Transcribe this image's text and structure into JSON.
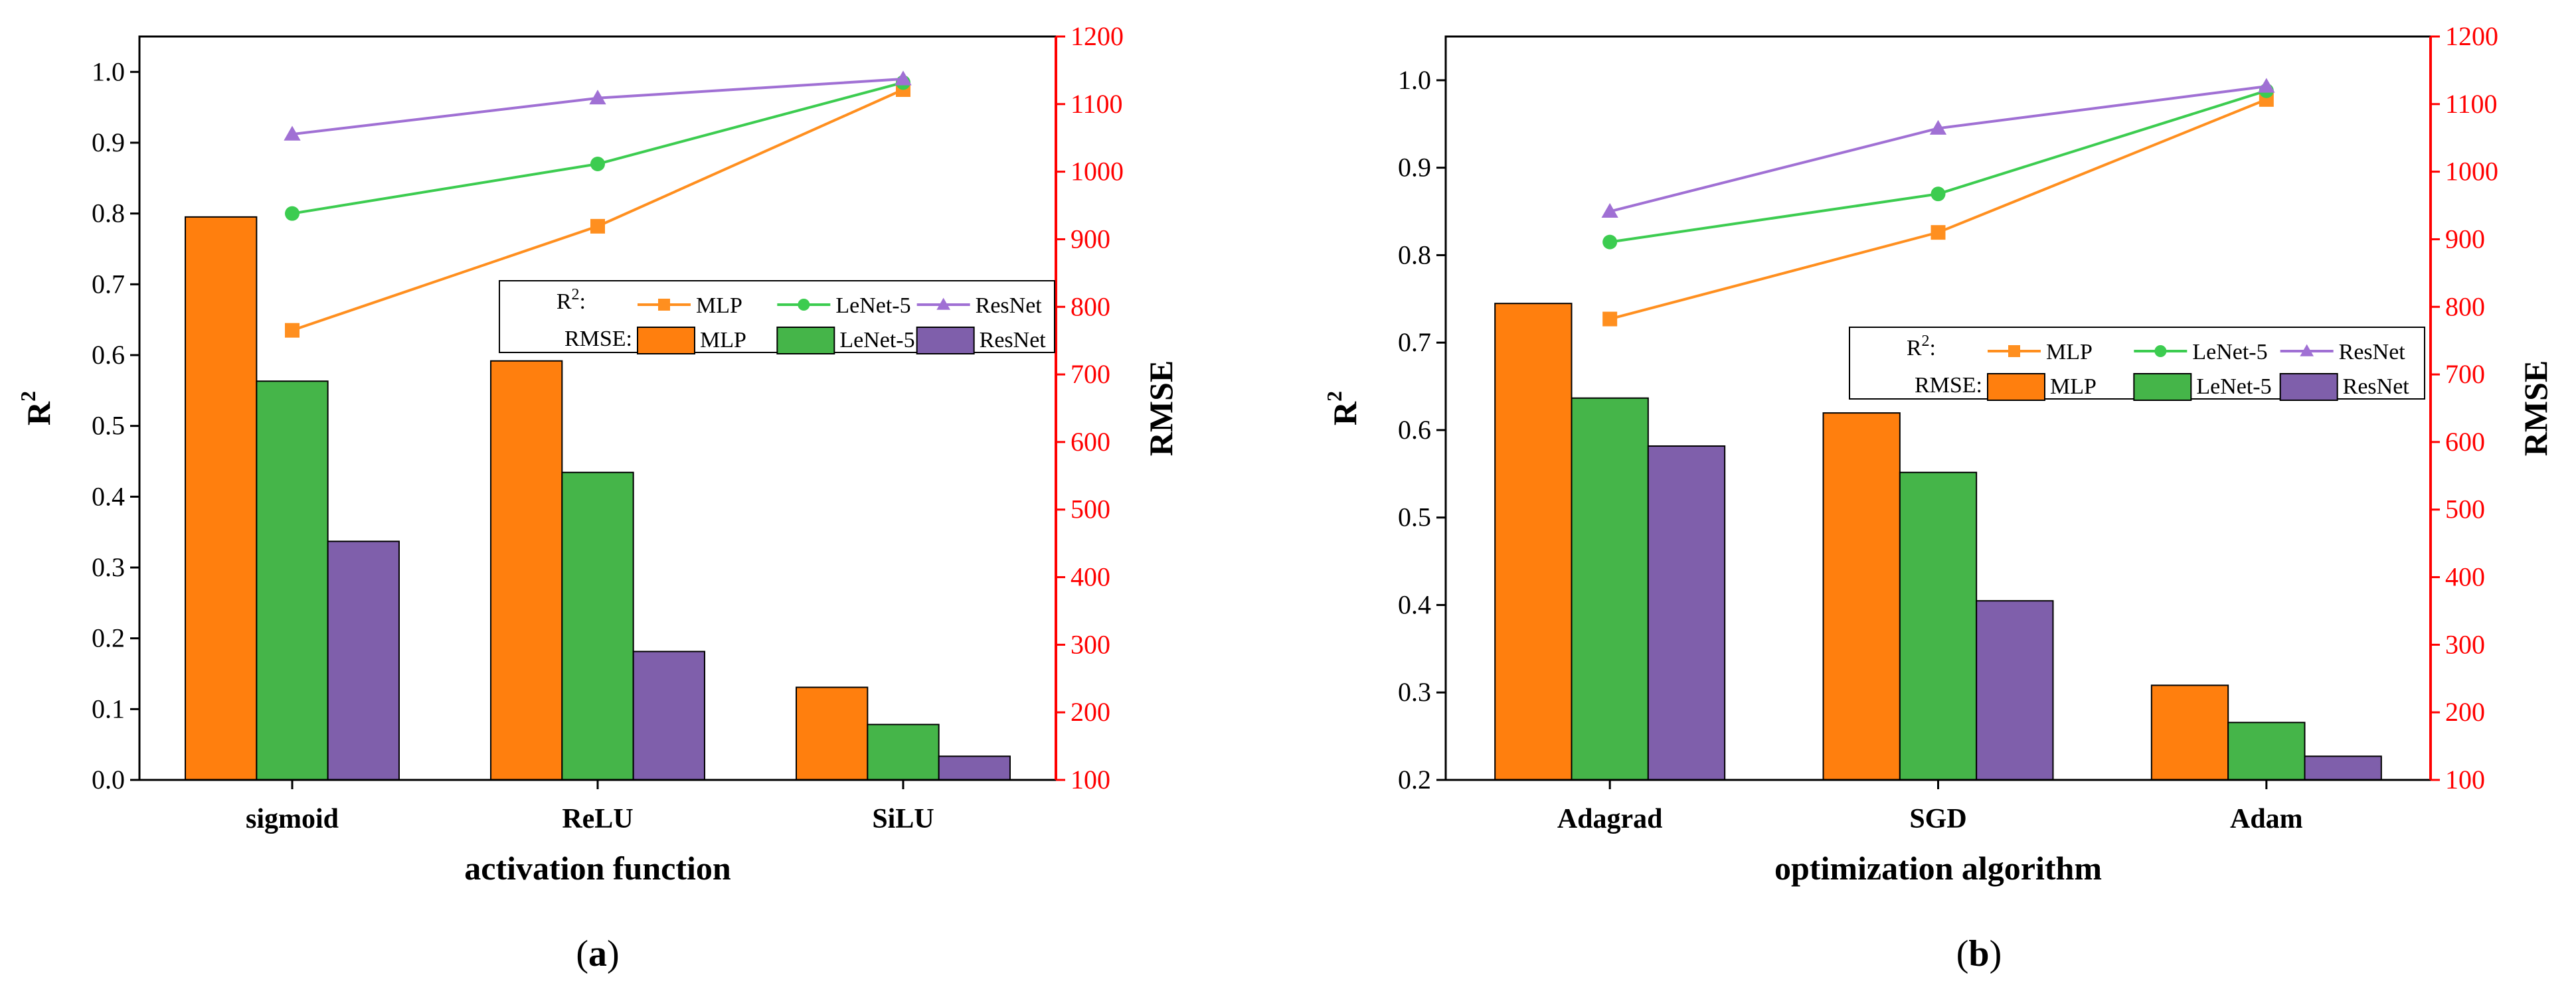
{
  "chart_data": [
    {
      "type": "bar+line",
      "caption": "(a)",
      "caption_letter": "a",
      "categories": [
        "sigmoid",
        "ReLU",
        "SiLU"
      ],
      "xlabel": "activation function",
      "ylabel_left": "R",
      "ylabel_left_sup": "2",
      "ylabel_right": "RMSE",
      "left_ylim": [
        0.0,
        1.05
      ],
      "left_ticks": [
        "0.0",
        "0.1",
        "0.2",
        "0.3",
        "0.4",
        "0.5",
        "0.6",
        "0.7",
        "0.8",
        "0.9",
        "1.0"
      ],
      "right_ylim": [
        100,
        1200
      ],
      "right_ticks": [
        "100",
        "200",
        "300",
        "400",
        "500",
        "600",
        "700",
        "800",
        "900",
        "1000",
        "1100",
        "1200"
      ],
      "bar_series": [
        {
          "name": "MLP",
          "values": [
            933,
            720,
            237
          ]
        },
        {
          "name": "LeNet-5",
          "values": [
            690,
            555,
            182
          ]
        },
        {
          "name": "ResNet",
          "values": [
            453,
            290,
            135
          ]
        }
      ],
      "line_series": [
        {
          "name": "MLP",
          "values": [
            0.635,
            0.782,
            0.975
          ]
        },
        {
          "name": "LeNet-5",
          "values": [
            0.8,
            0.87,
            0.985
          ]
        },
        {
          "name": "ResNet",
          "values": [
            0.912,
            0.963,
            0.99
          ]
        }
      ],
      "legend": {
        "r2_label": "R",
        "r2_sup": "2",
        "r2_suffix": ":",
        "rmse_label": "RMSE:",
        "entries": [
          "MLP",
          "LeNet-5",
          "ResNet"
        ]
      }
    },
    {
      "type": "bar+line",
      "caption": "(b)",
      "caption_letter": "b",
      "categories": [
        "Adagrad",
        "SGD",
        "Adam"
      ],
      "xlabel": "optimization algorithm",
      "ylabel_left": "R",
      "ylabel_left_sup": "2",
      "ylabel_right": "RMSE",
      "left_ylim": [
        0.2,
        1.05
      ],
      "left_ticks": [
        "0.2",
        "0.3",
        "0.4",
        "0.5",
        "0.6",
        "0.7",
        "0.8",
        "0.9",
        "1.0"
      ],
      "right_ylim": [
        100,
        1200
      ],
      "right_ticks": [
        "100",
        "200",
        "300",
        "400",
        "500",
        "600",
        "700",
        "800",
        "900",
        "1000",
        "1100",
        "1200"
      ],
      "bar_series": [
        {
          "name": "MLP",
          "values": [
            805,
            643,
            240
          ]
        },
        {
          "name": "LeNet-5",
          "values": [
            665,
            555,
            185
          ]
        },
        {
          "name": "ResNet",
          "values": [
            594,
            365,
            135
          ]
        }
      ],
      "line_series": [
        {
          "name": "MLP",
          "values": [
            0.727,
            0.826,
            0.978
          ]
        },
        {
          "name": "LeNet-5",
          "values": [
            0.815,
            0.87,
            0.988
          ]
        },
        {
          "name": "ResNet",
          "values": [
            0.85,
            0.945,
            0.993
          ]
        }
      ],
      "legend": {
        "r2_label": "R",
        "r2_sup": "2",
        "r2_suffix": ":",
        "rmse_label": "RMSE:",
        "entries": [
          "MLP",
          "LeNet-5",
          "ResNet"
        ]
      }
    }
  ],
  "colors": {
    "mlp_bar": "#ff7f0e",
    "lenet_bar": "#45b549",
    "resnet_bar": "#7f5fab",
    "mlp_line": "#ff8f1f",
    "lenet_line": "#3ccc50",
    "resnet_line": "#a070d4",
    "right_axis": "#ff0000"
  }
}
